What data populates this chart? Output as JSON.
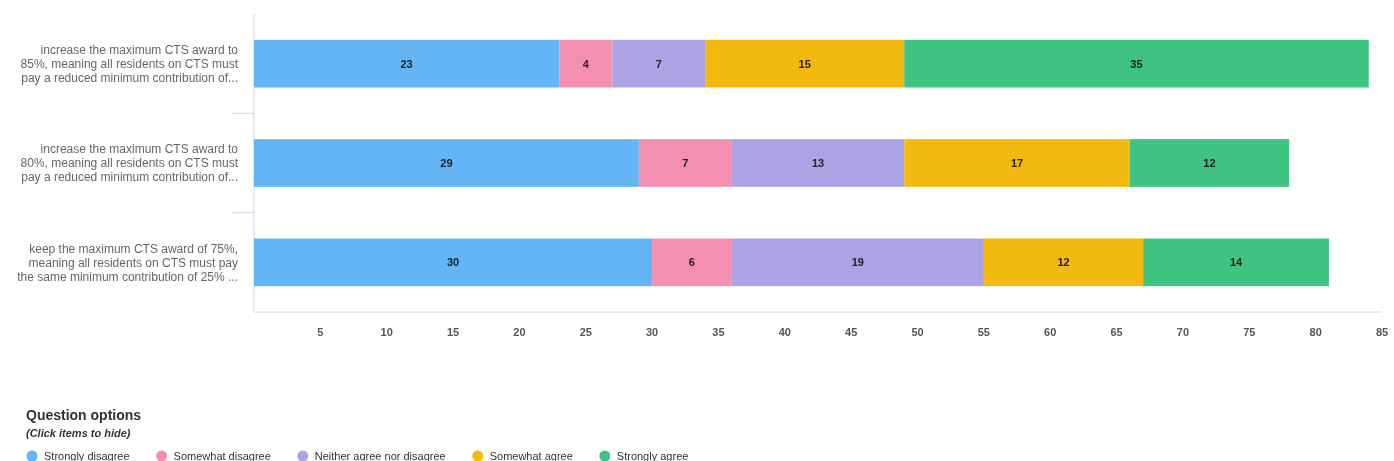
{
  "chart_data": {
    "type": "bar",
    "orientation": "horizontal",
    "stacked": true,
    "legend_title": "Question options",
    "annotations": [
      "(Click items to hide)"
    ],
    "categories": [
      "increase the maximum CTS award to 85%, meaning all residents on CTS must pay a reduced minimum contribution of...",
      "increase the maximum CTS award to 80%, meaning all residents on CTS must pay a reduced minimum contribution of...",
      "keep the maximum CTS award of 75%, meaning all residents on CTS must pay the same minimum contribution of 25% ..."
    ],
    "series": [
      {
        "name": "Strongly disagree",
        "color": "#64b5f6",
        "values": [
          23,
          29,
          30
        ]
      },
      {
        "name": "Somewhat disagree",
        "color": "#f48fb1",
        "values": [
          4,
          7,
          6
        ]
      },
      {
        "name": "Neither agree nor disagree",
        "color": "#aba3e3",
        "values": [
          7,
          13,
          19
        ]
      },
      {
        "name": "Somewhat agree",
        "color": "#f2b90f",
        "values": [
          15,
          17,
          12
        ]
      },
      {
        "name": "Strongly agree",
        "color": "#3fc380",
        "values": [
          35,
          12,
          14
        ]
      }
    ],
    "xlim": [
      0,
      85
    ],
    "xticks": [
      5,
      10,
      15,
      20,
      25,
      30,
      35,
      40,
      45,
      50,
      55,
      60,
      65,
      70,
      75,
      80,
      85
    ],
    "data_labels": true,
    "legend": "bottom",
    "grid": false
  }
}
